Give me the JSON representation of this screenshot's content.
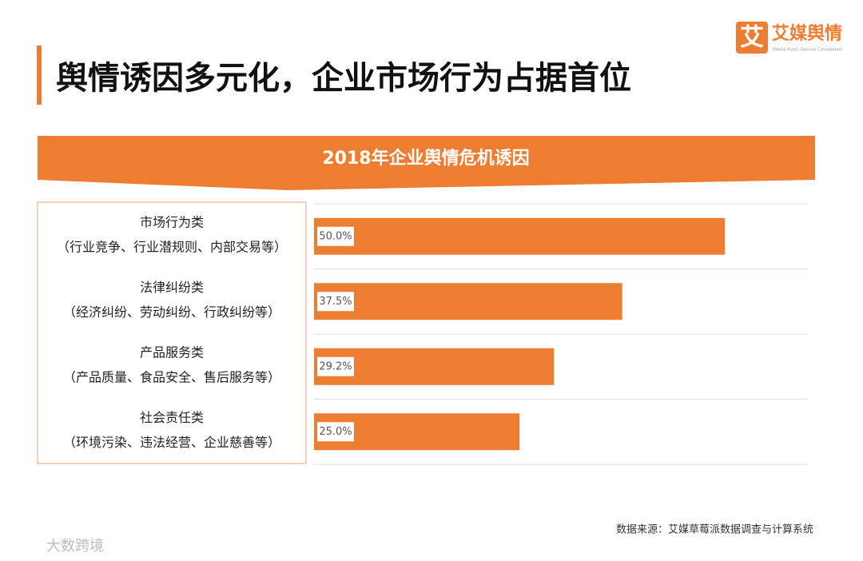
{
  "chart_data": {
    "type": "bar",
    "orientation": "horizontal",
    "title": "舆情诱因多元化，企业市场行为占据首位",
    "subtitle": "2018年企业舆情危机诱因",
    "categories": [
      "市场行为类",
      "法律纠纷类",
      "产品服务类",
      "社会责任类"
    ],
    "descriptions": [
      "（行业竞争、行业潜规则、内部交易等）",
      "（经济纠纷、劳动纠纷、行政纠纷等）",
      "（产品质量、食品安全、售后服务等）",
      "（环境污染、违法经营、企业慈善等）"
    ],
    "values": [
      50.0,
      37.5,
      29.2,
      25.0
    ],
    "value_labels": [
      "50.0%",
      "37.5%",
      "29.2%",
      "25.0%"
    ],
    "color": "#ed7d31",
    "xlim": [
      0,
      60
    ],
    "source": "数据来源：艾媒草莓派数据调查与计算系统",
    "logo": {
      "icon": "艾",
      "name": "艾媒舆情",
      "tagline": "iiMedia Public Opinion Consultation"
    },
    "watermark": "大数跨境"
  }
}
